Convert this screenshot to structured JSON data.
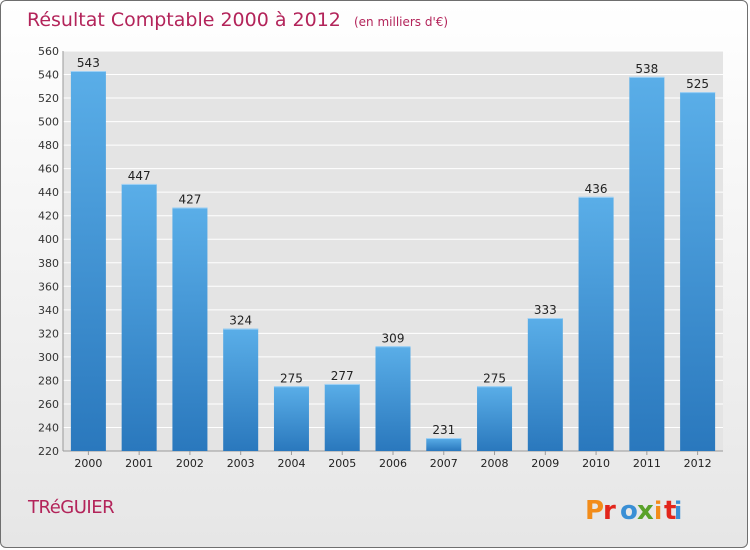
{
  "header": {
    "title": "Résultat Comptable 2000 à 2012",
    "unit": "(en milliers d'€)"
  },
  "footer": {
    "commune": "TRéGUIER",
    "logo_text": "Proxiti"
  },
  "colors": {
    "bar": "#3a8fd5",
    "title": "#b3245a",
    "logo": [
      "#f28c1a",
      "#e2261c",
      "#3a8fd5",
      "#5aa22a",
      "#f28c1a",
      "#e2261c",
      "#3a8fd5"
    ]
  },
  "chart_data": {
    "type": "bar",
    "categories": [
      "2000",
      "2001",
      "2002",
      "2003",
      "2004",
      "2005",
      "2006",
      "2007",
      "2008",
      "2009",
      "2010",
      "2011",
      "2012"
    ],
    "values": [
      543,
      447,
      427,
      324,
      275,
      277,
      309,
      231,
      275,
      333,
      436,
      538,
      525
    ],
    "ylim": [
      220,
      560
    ],
    "yticks": [
      220,
      240,
      260,
      280,
      300,
      320,
      340,
      360,
      380,
      400,
      420,
      440,
      460,
      480,
      500,
      520,
      540,
      560
    ],
    "grid": true,
    "legend": "none"
  }
}
